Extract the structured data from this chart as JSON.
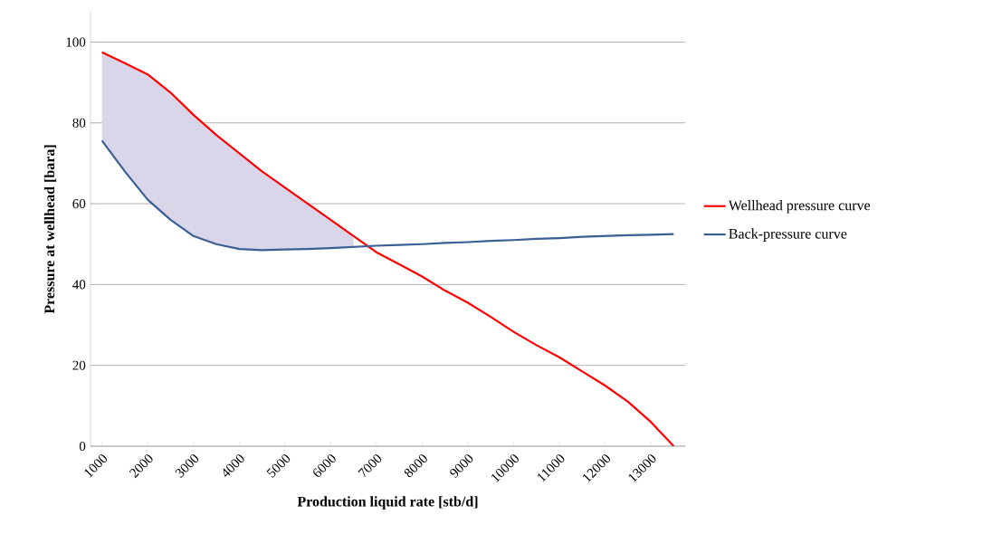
{
  "chart_data": {
    "type": "line",
    "xlabel": "Production liquid rate [stb/d]",
    "ylabel": "Pressure at wellhead [bara]",
    "x": [
      1000,
      1500,
      2000,
      2500,
      3000,
      3500,
      4000,
      4500,
      5000,
      5500,
      6000,
      6500,
      7000,
      7500,
      8000,
      8500,
      9000,
      9500,
      10000,
      10500,
      11000,
      11500,
      12000,
      12500,
      13000,
      13500
    ],
    "xlim": [
      750,
      13750
    ],
    "xticks": [
      1000,
      2000,
      3000,
      4000,
      5000,
      6000,
      7000,
      8000,
      9000,
      10000,
      11000,
      12000,
      13000
    ],
    "ylim": [
      0,
      107.5
    ],
    "yticks": [
      0,
      20,
      40,
      60,
      80,
      100
    ],
    "grid": "y",
    "legend": "right",
    "marker": "none",
    "line_style": "solid",
    "series": [
      {
        "name": "Wellhead pressure curve",
        "color": "#ff0000",
        "values": [
          97.5,
          94.8,
          92,
          87.5,
          82,
          77,
          72.5,
          68,
          64,
          60,
          56,
          52,
          48,
          45,
          42,
          38.5,
          35.5,
          32,
          28.3,
          25,
          22,
          18.5,
          15,
          11,
          6,
          0
        ],
        "lower": [
          75.6,
          68,
          61,
          56,
          52,
          50,
          48.8,
          48.5,
          48.7,
          48.8,
          49,
          49.3,
          null,
          null,
          null,
          null,
          null,
          null,
          null,
          null,
          null,
          null,
          null,
          null,
          null,
          null
        ],
        "upper": [
          97.5,
          94.8,
          92,
          87.5,
          82,
          77,
          72.5,
          68,
          64,
          60,
          56,
          52,
          null,
          null,
          null,
          null,
          null,
          null,
          null,
          null,
          null,
          null,
          null,
          null,
          null,
          null
        ]
      },
      {
        "name": "Back-pressure curve",
        "color": "#3a5f95",
        "values": [
          75.6,
          68,
          61,
          56,
          52,
          50,
          48.8,
          48.5,
          48.7,
          48.8,
          49,
          49.3,
          49.6,
          49.8,
          50,
          50.3,
          50.5,
          50.8,
          51,
          51.3,
          51.5,
          51.8,
          52,
          52.2,
          52.3,
          52.5
        ]
      }
    ]
  }
}
